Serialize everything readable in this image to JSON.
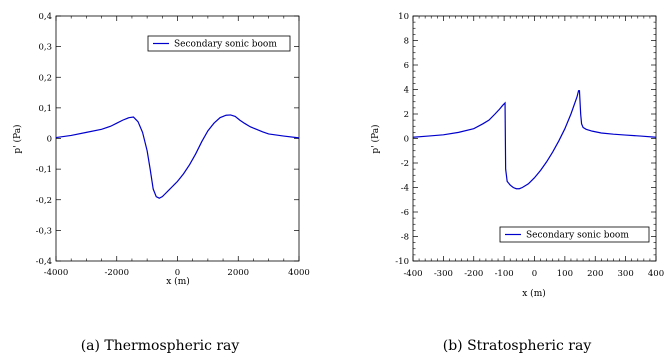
{
  "chart_data": [
    {
      "type": "line",
      "caption": "(a) Thermospheric ray",
      "xlabel": "x (m)",
      "ylabel": "p' (Pa)",
      "xlim": [
        -4000,
        4000
      ],
      "ylim": [
        -0.4,
        0.4
      ],
      "xticks": [
        -4000,
        -2000,
        0,
        2000,
        4000
      ],
      "xtick_labels": [
        "-4000",
        "-2000",
        "0",
        "2000",
        "4000"
      ],
      "yticks": [
        -0.4,
        -0.3,
        -0.2,
        -0.1,
        0,
        0.1,
        0.2,
        0.3,
        0.4
      ],
      "ytick_labels": [
        "-0,4",
        "-0,3",
        "-0,2",
        "-0,1",
        "0",
        "0,1",
        "0,2",
        "0,3",
        "0,4"
      ],
      "grid": false,
      "legend_position": "top-right",
      "series": [
        {
          "name": "Secondary sonic boom",
          "color": "#0000cc",
          "x": [
            -4000,
            -3500,
            -3000,
            -2500,
            -2200,
            -2000,
            -1800,
            -1600,
            -1450,
            -1300,
            -1150,
            -1000,
            -900,
            -800,
            -700,
            -600,
            -500,
            -400,
            -300,
            -200,
            -100,
            0,
            200,
            400,
            600,
            800,
            1000,
            1200,
            1400,
            1600,
            1750,
            1900,
            2050,
            2200,
            2400,
            2600,
            2800,
            3000,
            3500,
            4000
          ],
          "y": [
            0.003,
            0.01,
            0.02,
            0.03,
            0.04,
            0.05,
            0.06,
            0.068,
            0.07,
            0.055,
            0.02,
            -0.04,
            -0.1,
            -0.165,
            -0.19,
            -0.195,
            -0.19,
            -0.18,
            -0.17,
            -0.16,
            -0.15,
            -0.14,
            -0.115,
            -0.085,
            -0.05,
            -0.01,
            0.025,
            0.05,
            0.068,
            0.076,
            0.077,
            0.072,
            0.06,
            0.05,
            0.038,
            0.03,
            0.022,
            0.015,
            0.008,
            0.002
          ]
        }
      ]
    },
    {
      "type": "line",
      "caption": "(b) Stratospheric ray",
      "xlabel": "x (m)",
      "ylabel": "p' (Pa)",
      "xlim": [
        -400,
        400
      ],
      "ylim": [
        -10,
        10
      ],
      "xticks": [
        -400,
        -300,
        -200,
        -100,
        0,
        100,
        200,
        300,
        400
      ],
      "xtick_labels": [
        "-400",
        "-300",
        "-200",
        "-100",
        "0",
        "100",
        "200",
        "300",
        "400"
      ],
      "yticks": [
        -10,
        -8,
        -6,
        -4,
        -2,
        0,
        2,
        4,
        6,
        8,
        10
      ],
      "ytick_labels": [
        "-10",
        "-8",
        "-6",
        "-4",
        "-2",
        "0",
        "2",
        "4",
        "6",
        "8",
        "10"
      ],
      "grid": false,
      "legend_position": "bottom-right",
      "series": [
        {
          "name": "Secondary sonic boom",
          "color": "#0000cc",
          "x": [
            -400,
            -350,
            -300,
            -250,
            -200,
            -170,
            -150,
            -130,
            -115,
            -105,
            -97,
            -95,
            -90,
            -80,
            -70,
            -60,
            -50,
            -40,
            -20,
            0,
            20,
            40,
            60,
            80,
            100,
            120,
            140,
            145,
            148,
            152,
            155,
            160,
            170,
            190,
            220,
            260,
            300,
            350,
            400
          ],
          "y": [
            0.1,
            0.2,
            0.3,
            0.5,
            0.8,
            1.2,
            1.5,
            2.0,
            2.4,
            2.7,
            2.9,
            -2.5,
            -3.5,
            -3.8,
            -4.0,
            -4.1,
            -4.1,
            -4.0,
            -3.7,
            -3.2,
            -2.6,
            -1.9,
            -1.1,
            -0.2,
            0.8,
            2.0,
            3.4,
            3.9,
            3.9,
            2.0,
            1.2,
            0.9,
            0.75,
            0.6,
            0.45,
            0.35,
            0.28,
            0.2,
            0.1
          ]
        }
      ]
    }
  ]
}
